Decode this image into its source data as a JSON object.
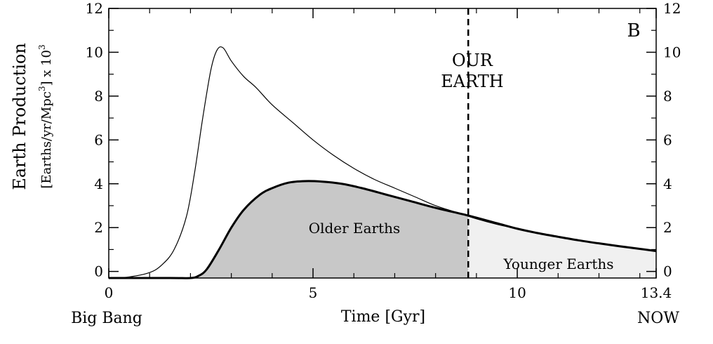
{
  "chart_data": {
    "type": "area",
    "panel_label": "B",
    "xlabel": "Time [Gyr]",
    "ylabel": "Earth Production",
    "ylabel_units": "[Earths/yr/Mpc",
    "ylabel_units_sup": "3",
    "ylabel_units_tail": "] x 10",
    "ylabel_units_sup2": "3",
    "xlim": [
      0,
      13.4
    ],
    "ylim": [
      -0.3,
      12
    ],
    "x_ticks": [
      {
        "value": 0,
        "label": "0"
      },
      {
        "value": 5,
        "label": "5"
      },
      {
        "value": 10,
        "label": "10"
      },
      {
        "value": 13.4,
        "label": "13.4"
      }
    ],
    "x_end_labels": {
      "start": "Big Bang",
      "end": "NOW"
    },
    "y_ticks": [
      {
        "value": 0,
        "label": "0"
      },
      {
        "value": 2,
        "label": "2"
      },
      {
        "value": 4,
        "label": "4"
      },
      {
        "value": 6,
        "label": "6"
      },
      {
        "value": 8,
        "label": "8"
      },
      {
        "value": 10,
        "label": "10"
      },
      {
        "value": 12,
        "label": "12"
      }
    ],
    "marker": {
      "x": 8.8,
      "label_line1": "OUR",
      "label_line2": "EARTH"
    },
    "regions": [
      {
        "name": "Older Earths",
        "from": 0,
        "to": 8.8,
        "color": "#c8c8c8"
      },
      {
        "name": "Younger Earths",
        "from": 8.8,
        "to": 13.4,
        "color": "#f0f0f0"
      }
    ],
    "series": [
      {
        "style": "thin",
        "x": [
          0,
          0.5,
          1.0,
          1.3,
          1.6,
          1.9,
          2.1,
          2.3,
          2.5,
          2.65,
          2.8,
          3.0,
          3.3,
          3.6,
          4.0,
          4.5,
          5.0,
          5.5,
          6.0,
          6.5,
          7.0,
          7.5,
          8.0,
          8.5,
          9.0,
          9.5,
          10.0,
          10.5,
          11.0,
          11.5,
          12.0,
          12.5,
          13.0,
          13.4
        ],
        "y": [
          -0.3,
          -0.25,
          -0.05,
          0.3,
          1.0,
          2.5,
          4.5,
          7.0,
          9.2,
          10.1,
          10.2,
          9.6,
          8.9,
          8.4,
          7.6,
          6.8,
          6.0,
          5.3,
          4.7,
          4.2,
          3.8,
          3.4,
          3.0,
          2.7,
          2.4,
          2.15,
          1.95,
          1.75,
          1.58,
          1.42,
          1.28,
          1.15,
          1.03,
          0.93
        ]
      },
      {
        "style": "thick",
        "x": [
          0,
          1.5,
          2.0,
          2.2,
          2.4,
          2.7,
          3.0,
          3.3,
          3.7,
          4.0,
          4.4,
          4.8,
          5.2,
          5.7,
          6.2,
          6.8,
          7.4,
          8.0,
          8.8,
          9.5,
          10.0,
          10.5,
          11.0,
          11.5,
          12.0,
          12.5,
          13.0,
          13.4
        ],
        "y": [
          -0.3,
          -0.3,
          -0.3,
          -0.2,
          0.1,
          1.0,
          2.0,
          2.8,
          3.5,
          3.8,
          4.05,
          4.12,
          4.1,
          4.0,
          3.8,
          3.5,
          3.2,
          2.9,
          2.55,
          2.2,
          1.95,
          1.75,
          1.58,
          1.42,
          1.28,
          1.15,
          1.03,
          0.93
        ]
      }
    ]
  }
}
